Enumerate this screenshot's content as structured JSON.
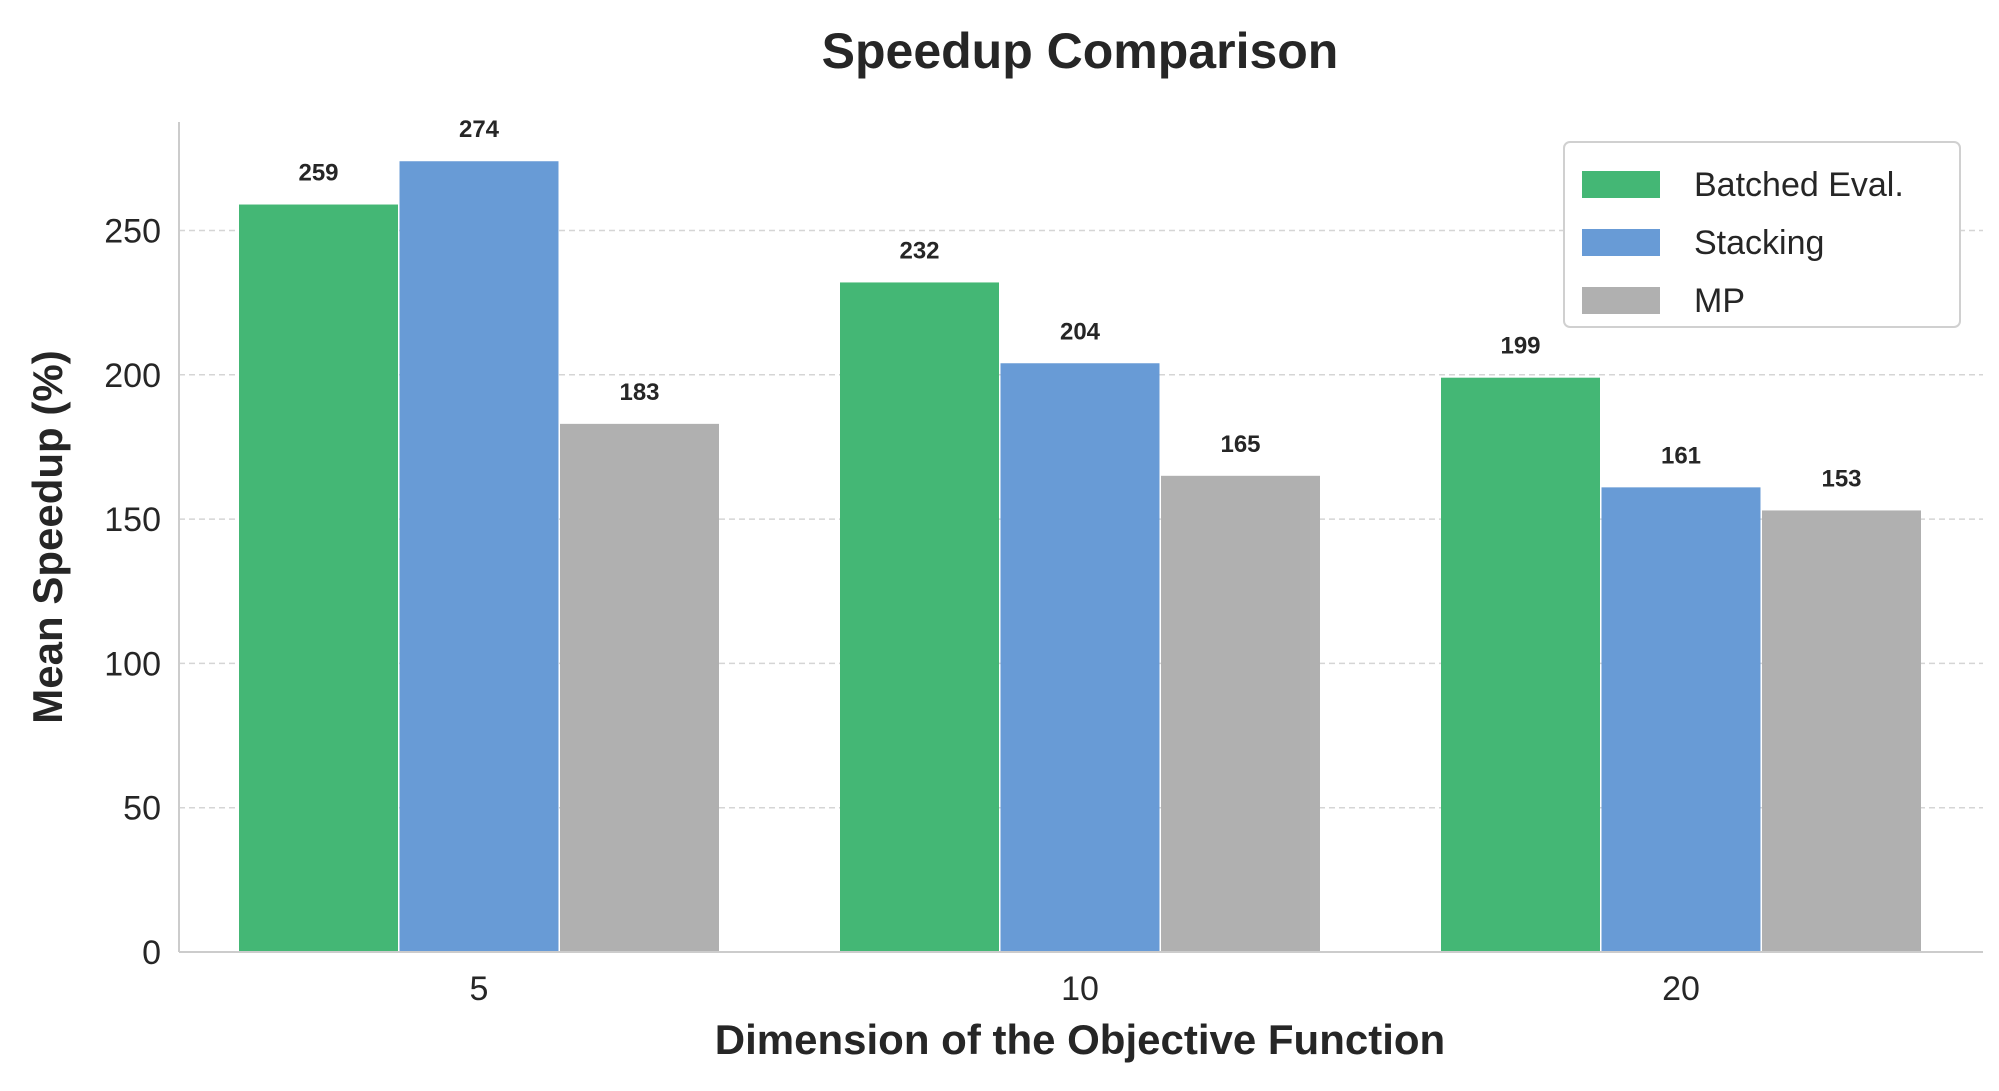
{
  "chart_data": {
    "type": "bar",
    "title": "Speedup Comparison",
    "xlabel": "Dimension of the Objective Function",
    "ylabel": "Mean Speedup (%)",
    "categories": [
      "5",
      "10",
      "20"
    ],
    "series": [
      {
        "name": "Batched Eval.",
        "color": "#44b775",
        "values": [
          259,
          232,
          199
        ]
      },
      {
        "name": "Stacking",
        "color": "#689bd6",
        "values": [
          274,
          204,
          161
        ]
      },
      {
        "name": "MP",
        "color": "#b0b0b0",
        "values": [
          183,
          165,
          153
        ]
      }
    ],
    "yticks": [
      0,
      50,
      100,
      150,
      200,
      250
    ],
    "ylim": [
      0,
      287
    ],
    "grid": true,
    "legend_position": "top-right"
  }
}
